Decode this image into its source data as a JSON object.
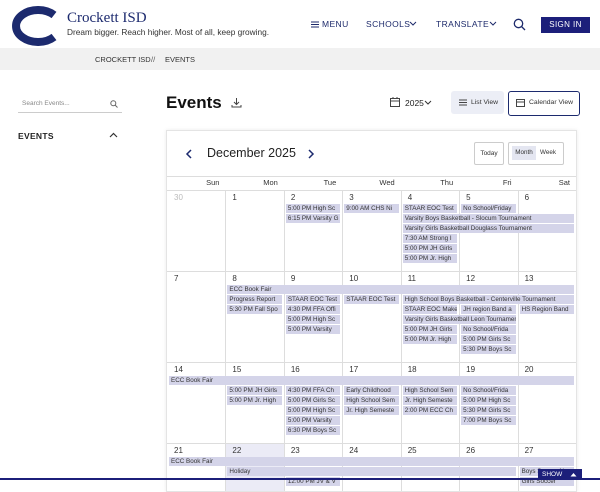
{
  "header": {
    "logo_title": "Crockett ISD",
    "tagline": "Dream bigger. Reach higher. Most of all, keep growing.",
    "nav": [
      "MENU",
      "SCHOOLS",
      "TRANSLATE"
    ],
    "sign_in": "SIGN IN"
  },
  "breadcrumb": {
    "items": [
      "CROCKETT ISD",
      "EVENTS"
    ],
    "separator": "//"
  },
  "sidebar": {
    "search_placeholder": "Search Events...",
    "section": "EVENTS"
  },
  "main": {
    "title": "Events",
    "year": "2025",
    "views": [
      "List View",
      "Calendar View"
    ]
  },
  "calendar": {
    "month": "December 2025",
    "today_button": "Today",
    "modes": [
      "Month",
      "Week"
    ],
    "weekdays": [
      "Sun",
      "Mon",
      "Tue",
      "Wed",
      "Thu",
      "Fri",
      "Sat"
    ],
    "weeks": [
      {
        "days": [
          {
            "label": "30",
            "outside": true
          },
          {
            "label": "1"
          },
          {
            "label": "2"
          },
          {
            "label": "3"
          },
          {
            "label": "4"
          },
          {
            "label": "5"
          },
          {
            "label": "6"
          }
        ],
        "events": [
          {
            "text": "5:00 PM High Sc",
            "start": "2",
            "end": "2"
          },
          {
            "text": "6:15 PM Varsity G",
            "start": "2",
            "end": "2"
          },
          {
            "text": "9:00 AM CHS Ni",
            "start": "3",
            "end": "3"
          },
          {
            "text": "STAAR EOC Test",
            "start": "4",
            "end": "4"
          },
          {
            "text": "Varsity Boys Basketball - Slocum Tournament",
            "start": "4",
            "end": "6"
          },
          {
            "text": "Varsity Girls Basketball Douglass Tournament",
            "start": "4",
            "end": "6"
          },
          {
            "text": "7:30 AM Strong I",
            "start": "4",
            "end": "4"
          },
          {
            "text": "5:00 PM JH Girls",
            "start": "4",
            "end": "4"
          },
          {
            "text": "5:00 PM Jr. High",
            "start": "4",
            "end": "4"
          },
          {
            "text": "No School/Friday",
            "start": "5",
            "end": "5"
          }
        ]
      },
      {
        "days": [
          {
            "label": "7"
          },
          {
            "label": "8"
          },
          {
            "label": "9"
          },
          {
            "label": "10"
          },
          {
            "label": "11"
          },
          {
            "label": "12"
          },
          {
            "label": "13"
          }
        ],
        "events": [
          {
            "text": "ECC Book Fair",
            "start": "8",
            "end": "13"
          },
          {
            "text": "Progress Report",
            "start": "8",
            "end": "8"
          },
          {
            "text": "5:30 PM Fall Spo",
            "start": "8",
            "end": "8"
          },
          {
            "text": "STAAR EOC Test",
            "start": "9",
            "end": "9"
          },
          {
            "text": "4:30 PM FFA Offi",
            "start": "9",
            "end": "9"
          },
          {
            "text": "5:00 PM High Sc",
            "start": "9",
            "end": "9"
          },
          {
            "text": "5:00 PM Varsity",
            "start": "9",
            "end": "9"
          },
          {
            "text": "STAAR EOC Test",
            "start": "10",
            "end": "10"
          },
          {
            "text": "High School Boys Basketball - Centerville Tournament",
            "start": "11",
            "end": "13"
          },
          {
            "text": "STAAR EOC Make",
            "start": "11",
            "end": "11"
          },
          {
            "text": "Varsity Girls Basketball Leon Tournament",
            "start": "11",
            "end": "12"
          },
          {
            "text": "5:00 PM JH Girls",
            "start": "11",
            "end": "11"
          },
          {
            "text": "5:00 PM Jr. High",
            "start": "11",
            "end": "11"
          },
          {
            "text": "JH region Band a",
            "start": "12",
            "end": "12"
          },
          {
            "text": "No School/Frida",
            "start": "12",
            "end": "12"
          },
          {
            "text": "5:00 PM Girls Sc",
            "start": "12",
            "end": "12"
          },
          {
            "text": "5:30 PM Boys Sc",
            "start": "12",
            "end": "12"
          },
          {
            "text": "HS Region Band",
            "start": "13",
            "end": "13"
          }
        ]
      },
      {
        "days": [
          {
            "label": "14"
          },
          {
            "label": "15"
          },
          {
            "label": "16"
          },
          {
            "label": "17"
          },
          {
            "label": "18"
          },
          {
            "label": "19"
          },
          {
            "label": "20"
          }
        ],
        "events": [
          {
            "text": "ECC Book Fair",
            "start": "14",
            "end": "20"
          },
          {
            "text": "5:00 PM JH Girls",
            "start": "15",
            "end": "15"
          },
          {
            "text": "5:00 PM Jr. High",
            "start": "15",
            "end": "15"
          },
          {
            "text": "4:30 PM FFA Ch",
            "start": "16",
            "end": "16"
          },
          {
            "text": "5:00 PM Girls Sc",
            "start": "16",
            "end": "16"
          },
          {
            "text": "5:00 PM High Sc",
            "start": "16",
            "end": "16"
          },
          {
            "text": "5:00 PM Varsity",
            "start": "16",
            "end": "16"
          },
          {
            "text": "6:30 PM Boys Sc",
            "start": "16",
            "end": "16"
          },
          {
            "text": "Early Childhood",
            "start": "17",
            "end": "17"
          },
          {
            "text": "High School Sem",
            "start": "17",
            "end": "17"
          },
          {
            "text": "Jr. High Semeste",
            "start": "17",
            "end": "17"
          },
          {
            "text": "High School Sem",
            "start": "18",
            "end": "18"
          },
          {
            "text": "Jr. High Semeste",
            "start": "18",
            "end": "18"
          },
          {
            "text": "2:00 PM ECC Ch",
            "start": "18",
            "end": "18"
          },
          {
            "text": "No School/Frida",
            "start": "19",
            "end": "19"
          },
          {
            "text": "5:00 PM High Sc",
            "start": "19",
            "end": "19"
          },
          {
            "text": "5:30 PM Girls Sc",
            "start": "19",
            "end": "19"
          },
          {
            "text": "7:00 PM Boys Sc",
            "start": "19",
            "end": "19"
          }
        ]
      },
      {
        "days": [
          {
            "label": "21"
          },
          {
            "label": "22",
            "today": true
          },
          {
            "label": "23"
          },
          {
            "label": "24"
          },
          {
            "label": "25"
          },
          {
            "label": "26"
          },
          {
            "label": "27"
          }
        ],
        "events": [
          {
            "text": "ECC Book Fair",
            "start": "21",
            "end": "27"
          },
          {
            "text": "Holiday",
            "start": "22",
            "end": "26"
          },
          {
            "text": "Boys Soccer Al",
            "start": "27",
            "end": "27"
          },
          {
            "text": "12:00 PM JV & V",
            "start": "23",
            "end": "23"
          },
          {
            "text": "Girls Soccer",
            "start": "27",
            "end": "27"
          }
        ]
      }
    ]
  },
  "footer_tab": "SHOW"
}
